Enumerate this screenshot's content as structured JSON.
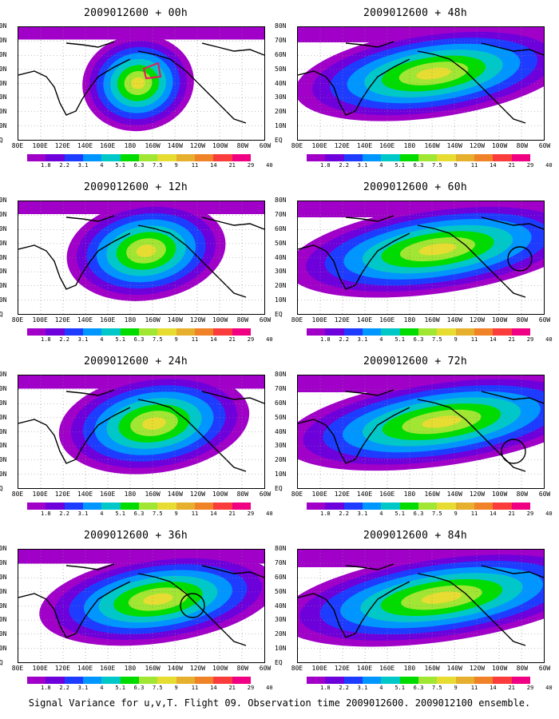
{
  "caption": "Signal Variance for u,v,T. Flight 09. Observation time 2009012600. 2009012100 ensemble.",
  "lat_labels": [
    "80N",
    "70N",
    "60N",
    "50N",
    "40N",
    "30N",
    "20N",
    "10N",
    "EQ"
  ],
  "lon_labels": [
    "80E",
    "100E",
    "120E",
    "140E",
    "160E",
    "180",
    "160W",
    "140W",
    "120W",
    "100W",
    "80W",
    "60W"
  ],
  "colorbar": {
    "labels": [
      "1.8",
      "2.2",
      "3.1",
      "4",
      "5.1",
      "6.3",
      "7.5",
      "9",
      "11",
      "14",
      "21",
      "29",
      "40"
    ],
    "colors": [
      "#a000c8",
      "#6e00dc",
      "#1e3cff",
      "#0096ff",
      "#00c8c8",
      "#00dc00",
      "#a0e632",
      "#e6dc32",
      "#e6af2d",
      "#f08228",
      "#fa3c3c",
      "#f00082"
    ]
  },
  "panels": [
    {
      "id": "p00",
      "title": "2009012600 + 00h",
      "circle": false,
      "box": true
    },
    {
      "id": "p12",
      "title": "2009012600 + 12h",
      "circle": false,
      "box": false
    },
    {
      "id": "p24",
      "title": "2009012600 + 24h",
      "circle": false,
      "box": false
    },
    {
      "id": "p36",
      "title": "2009012600 + 36h",
      "circle": true,
      "box": false
    },
    {
      "id": "p48",
      "title": "2009012600 + 48h",
      "circle": false,
      "box": false
    },
    {
      "id": "p60",
      "title": "2009012600 + 60h",
      "circle": true,
      "box": false
    },
    {
      "id": "p72",
      "title": "2009012600 + 72h",
      "circle": true,
      "box": false
    },
    {
      "id": "p84",
      "title": "2009012600 + 84h",
      "circle": false,
      "box": false
    }
  ]
}
